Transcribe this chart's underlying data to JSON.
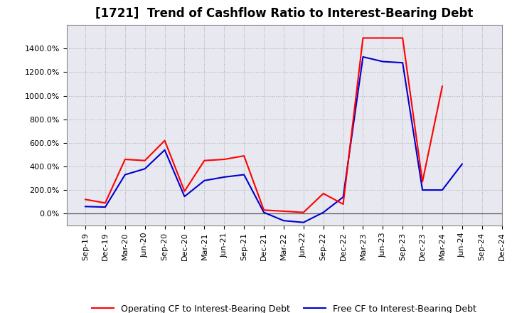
{
  "title": "[1721]  Trend of Cashflow Ratio to Interest-Bearing Debt",
  "x_labels": [
    "Sep-19",
    "Dec-19",
    "Mar-20",
    "Jun-20",
    "Sep-20",
    "Dec-20",
    "Mar-21",
    "Jun-21",
    "Sep-21",
    "Dec-21",
    "Mar-22",
    "Jun-22",
    "Sep-22",
    "Dec-22",
    "Mar-23",
    "Jun-23",
    "Sep-23",
    "Dec-23",
    "Mar-24",
    "Jun-24",
    "Sep-24",
    "Dec-24"
  ],
  "operating_cf": [
    120,
    90,
    460,
    450,
    620,
    190,
    450,
    460,
    490,
    30,
    20,
    10,
    170,
    80,
    1490,
    1490,
    1490,
    270,
    1080,
    null,
    null,
    null
  ],
  "free_cf": [
    60,
    55,
    330,
    380,
    540,
    145,
    280,
    310,
    330,
    10,
    -60,
    -75,
    10,
    140,
    1330,
    1290,
    1280,
    200,
    200,
    420,
    null,
    null
  ],
  "operating_color": "#FF0000",
  "free_color": "#0000CC",
  "bg_color": "#FFFFFF",
  "plot_bg_color": "#E8E8F0",
  "grid_color": "#AAAAAA",
  "ylim_min": -100,
  "ylim_max": 1600,
  "yticks": [
    0,
    200,
    400,
    600,
    800,
    1000,
    1200,
    1400
  ],
  "legend_op": "Operating CF to Interest-Bearing Debt",
  "legend_free": "Free CF to Interest-Bearing Debt",
  "title_fontsize": 12,
  "tick_fontsize": 8,
  "legend_fontsize": 9
}
